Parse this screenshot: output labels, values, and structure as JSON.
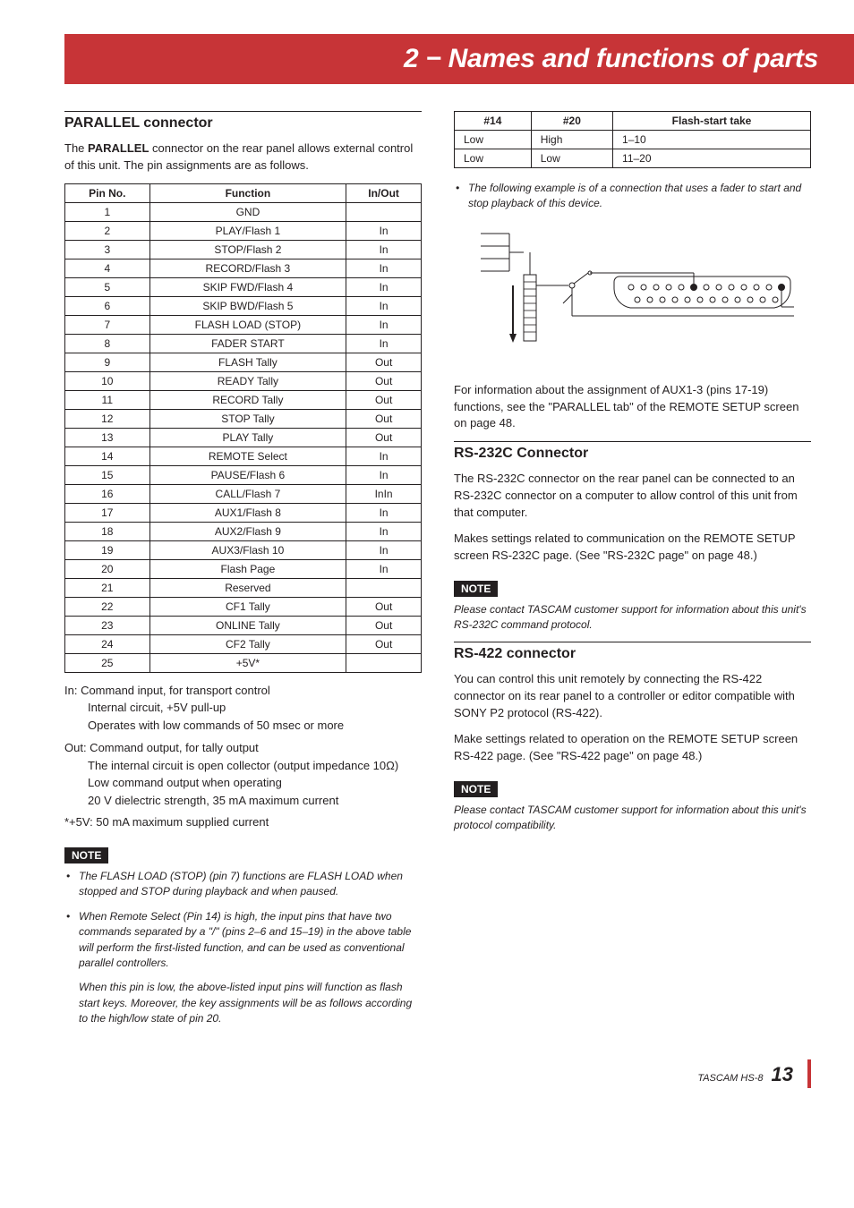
{
  "banner": {
    "title": "2 − Names and functions of parts",
    "bg": "#c73437",
    "fg": "#ffffff"
  },
  "left": {
    "heading": "PARALLEL connector",
    "intro": "The <b>PARALLEL</b> connector on the rear panel allows external control of this unit. The pin assignments are as follows.",
    "pinHeaders": [
      "Pin No.",
      "Function",
      "In/Out"
    ],
    "pins": [
      [
        "1",
        "GND",
        ""
      ],
      [
        "2",
        "PLAY/Flash 1",
        "In"
      ],
      [
        "3",
        "STOP/Flash 2",
        "In"
      ],
      [
        "4",
        "RECORD/Flash 3",
        "In"
      ],
      [
        "5",
        "SKIP FWD/Flash 4",
        "In"
      ],
      [
        "6",
        "SKIP BWD/Flash 5",
        "In"
      ],
      [
        "7",
        "FLASH LOAD (STOP)",
        "In"
      ],
      [
        "8",
        "FADER START",
        "In"
      ],
      [
        "9",
        "FLASH Tally",
        "Out"
      ],
      [
        "10",
        "READY Tally",
        "Out"
      ],
      [
        "11",
        "RECORD Tally",
        "Out"
      ],
      [
        "12",
        "STOP Tally",
        "Out"
      ],
      [
        "13",
        "PLAY Tally",
        "Out"
      ],
      [
        "14",
        "REMOTE Select",
        "In"
      ],
      [
        "15",
        "PAUSE/Flash 6",
        "In"
      ],
      [
        "16",
        "CALL/Flash 7",
        "InIn"
      ],
      [
        "17",
        "AUX1/Flash 8",
        "In"
      ],
      [
        "18",
        "AUX2/Flash 9",
        "In"
      ],
      [
        "19",
        "AUX3/Flash 10",
        "In"
      ],
      [
        "20",
        "Flash Page",
        "In"
      ],
      [
        "21",
        "Reserved",
        ""
      ],
      [
        "22",
        "CF1 Tally",
        "Out"
      ],
      [
        "23",
        "ONLINE Tally",
        "Out"
      ],
      [
        "24",
        "CF2 Tally",
        "Out"
      ],
      [
        "25",
        "+5V*",
        ""
      ]
    ],
    "defIn": "In: Command input, for transport control",
    "defInL2": "Internal circuit, +5V pull-up",
    "defInL3": "Operates with low commands of 50 msec or more",
    "defOut": "Out: Command output, for tally output",
    "defOutL2": "The internal circuit is open collector (output impedance 10Ω)",
    "defOutL3": "Low command output when operating",
    "defOutL4": "20 V dielectric strength, 35 mA maximum current",
    "defStar": "*+5V: 50 mA maximum supplied current",
    "noteLabel": "NOTE",
    "notes": [
      "The FLASH LOAD (STOP) (pin 7) functions are FLASH LOAD when stopped and STOP during playback and when paused.",
      "When Remote Select (Pin 14) is high, the input pins that have two commands separated by a \"/\" (pins 2–6 and 15–19) in the above table will perform the first-listed function, and can be used as conventional parallel controllers."
    ],
    "noteSub": "When this pin is low, the above-listed input pins will function as flash start keys. Moreover, the key assignments will be as follows according to the high/low state of pin 20."
  },
  "right": {
    "flashHeaders": [
      "#14",
      "#20",
      "Flash-start take"
    ],
    "flashRows": [
      [
        "Low",
        "High",
        "1–10"
      ],
      [
        "Low",
        "Low",
        "11–20"
      ]
    ],
    "bullet": "The following example is of a connection that uses a fader to start and stop playback of this device.",
    "afterDiagram": "For information about the assignment of AUX1-3 (pins 17-19) functions, see the \"PARALLEL tab\" of the REMOTE SETUP screen on page 48.",
    "rs232": {
      "heading": "RS-232C Connector",
      "p1": "The RS-232C connector on the rear panel can be connected to an RS-232C connector on a computer to allow control of this unit from that computer.",
      "p2": "Makes settings related to communication on the REMOTE SETUP screen RS-232C page. (See  \"RS-232C page\" on page 48.)",
      "note": "Please contact TASCAM customer support for information about this unit's RS-232C command protocol."
    },
    "rs422": {
      "heading": "RS-422 connector",
      "p1": "You can control this unit remotely by connecting the RS-422 connector on its rear panel to a controller or editor compatible with SONY P2 protocol (RS-422).",
      "p2": "Make settings related to operation on the REMOTE SETUP screen RS-422 page. (See \"RS-422 page\" on page 48.)",
      "note": "Please contact TASCAM customer support for information about this unit's protocol compatibility."
    },
    "noteLabel": "NOTE"
  },
  "footer": {
    "prefix": "TASCAM  HS-8",
    "page": "13"
  }
}
